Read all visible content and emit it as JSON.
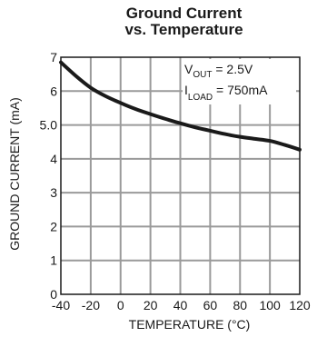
{
  "chart_data": {
    "type": "line",
    "title": [
      "Ground Current",
      "vs. Temperature"
    ],
    "xlabel": "TEMPERATURE (°C)",
    "ylabel": "GROUND CURRENT (mA)",
    "x_ticks": [
      "-40",
      "-20",
      "0",
      "20",
      "40",
      "60",
      "80",
      "100",
      "120"
    ],
    "y_ticks": [
      "0",
      "1",
      "2",
      "3",
      "4",
      "5.0",
      "6",
      "7"
    ],
    "xlim": [
      -40,
      120
    ],
    "ylim": [
      0,
      7
    ],
    "grid": true,
    "series": [
      {
        "x": [
          -40,
          -30,
          -20,
          -10,
          0,
          10,
          20,
          30,
          40,
          50,
          60,
          70,
          80,
          90,
          100,
          110,
          120
        ],
        "y": [
          6.85,
          6.45,
          6.1,
          5.85,
          5.65,
          5.47,
          5.32,
          5.18,
          5.05,
          4.93,
          4.83,
          4.73,
          4.65,
          4.59,
          4.53,
          4.41,
          4.27
        ]
      }
    ],
    "annotation": {
      "line1": {
        "main": "V",
        "sub": "OUT",
        "rest": " = 2.5V"
      },
      "line2": {
        "main": "I",
        "sub": "LOAD",
        "rest": " = 750mA"
      }
    }
  }
}
